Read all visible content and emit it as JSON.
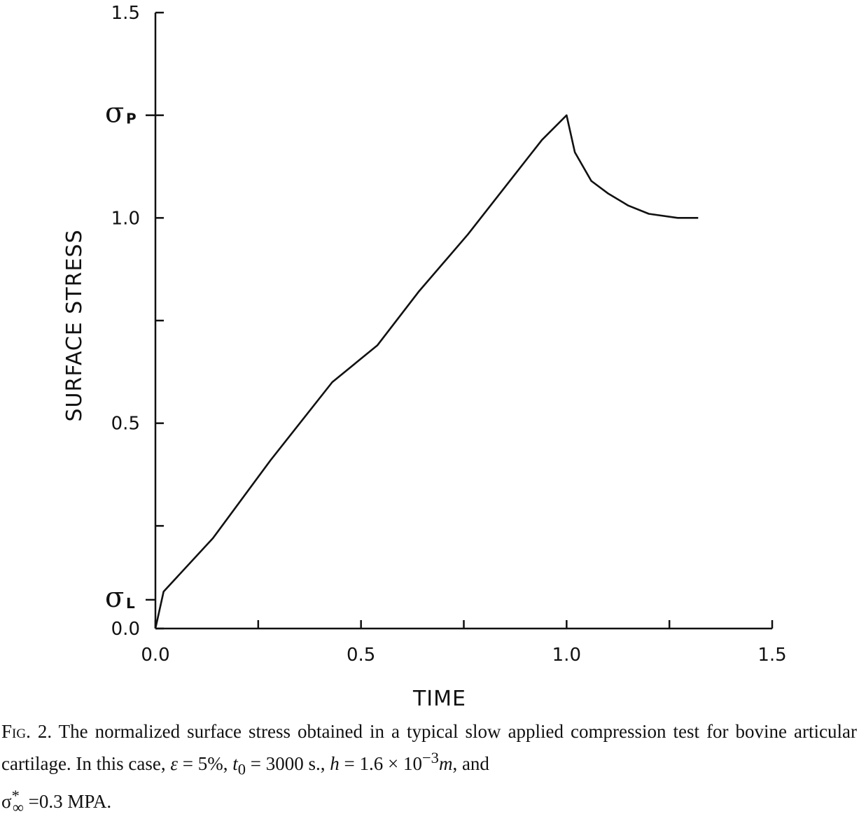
{
  "chart_data": {
    "type": "line",
    "xlabel": "TIME",
    "ylabel": "SURFACE STRESS",
    "xlim": [
      0.0,
      1.5
    ],
    "ylim": [
      0.0,
      1.5
    ],
    "x_tick_labels": [
      "0.0",
      "0.5",
      "1.0",
      "1.5"
    ],
    "y_tick_labels": [
      "0.0",
      "0.5",
      "1.0",
      "1.5"
    ],
    "x_ticks": [
      0.0,
      0.25,
      0.5,
      0.75,
      1.0,
      1.25,
      1.5
    ],
    "y_ticks": [
      0.0,
      0.25,
      0.5,
      0.75,
      1.0,
      1.25,
      1.5
    ],
    "special_labels": [
      {
        "symbol": "σ",
        "subscript": "L",
        "value": 0.07
      },
      {
        "symbol": "σ",
        "subscript": "P",
        "value": 1.25
      }
    ],
    "series": [
      {
        "name": "surface stress",
        "x": [
          0.0,
          0.02,
          0.14,
          0.28,
          0.43,
          0.54,
          0.64,
          0.76,
          0.94,
          1.0,
          1.02,
          1.06,
          1.1,
          1.15,
          1.2,
          1.27,
          1.32
        ],
        "y": [
          0.0,
          0.09,
          0.22,
          0.41,
          0.6,
          0.69,
          0.82,
          0.96,
          1.19,
          1.25,
          1.16,
          1.09,
          1.06,
          1.03,
          1.01,
          1.0,
          1.0
        ]
      }
    ]
  },
  "caption": {
    "label": "Fig. 2.",
    "line1": "The normalized surface stress obtained in a typical slow applied compression test",
    "line2_text": "for bovine articular cartilage. In this case,",
    "eps_symbol": "ε",
    "eps_eq": " = 5%, ",
    "t_symbol": "t",
    "t_sub": "0",
    "t_eq": " = 3000 s., ",
    "h_symbol": "h",
    "h_eq": " = 1.6 × 10",
    "h_exp": "−3",
    "m_symbol": "m",
    "and_text": ", and",
    "sigma_symbol": "σ",
    "sigma_sup": "*",
    "sigma_sub": "∞",
    "sigma_eq": " =0.3 MPA."
  }
}
